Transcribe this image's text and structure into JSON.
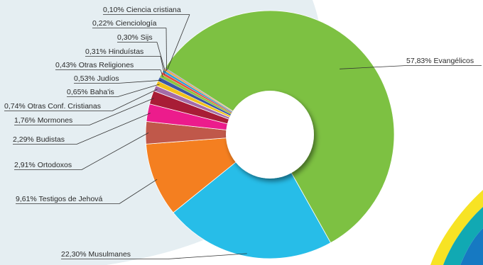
{
  "chart_data": {
    "type": "pie",
    "variant": "donut",
    "labels": [
      "57,83%  Evangélicos",
      "22,30%  Musulmanes",
      "9,61%  Testigos de Jehová",
      "2,91%  Ortodoxos",
      "2,29%  Budistas",
      "1,76%  Mormones",
      "0,74%  Otras Conf. Cristianas",
      "0,65%  Baha'is",
      "0,53%  Judíos",
      "0,43%  Otras Religiones",
      "0,31%  Hinduístas",
      "0,30%  Sijs",
      "0,22%  Cienciología",
      "0,10%  Ciencia cristiana"
    ],
    "series": [
      {
        "name": "Evangélicos",
        "value": 57.83,
        "color": "#7dc142"
      },
      {
        "name": "Musulmanes",
        "value": 22.3,
        "color": "#27bde8"
      },
      {
        "name": "Testigos de Jehová",
        "value": 9.61,
        "color": "#f47f20"
      },
      {
        "name": "Ortodoxos",
        "value": 2.91,
        "color": "#c0584a"
      },
      {
        "name": "Budistas",
        "value": 2.29,
        "color": "#ec1c8c"
      },
      {
        "name": "Mormones",
        "value": 1.76,
        "color": "#a81d36"
      },
      {
        "name": "Otras Conf. Cristianas",
        "value": 0.74,
        "color": "#a46ba8"
      },
      {
        "name": "Baha'is",
        "value": 0.65,
        "color": "#f2c21b"
      },
      {
        "name": "Judíos",
        "value": 0.53,
        "color": "#3b57a6"
      },
      {
        "name": "Otras Religiones",
        "value": 0.43,
        "color": "#8fc43e"
      },
      {
        "name": "Hinduístas",
        "value": 0.31,
        "color": "#e74c3c"
      },
      {
        "name": "Sijs",
        "value": 0.3,
        "color": "#2f9fd7"
      },
      {
        "name": "Cienciología",
        "value": 0.22,
        "color": "#f7a93b"
      },
      {
        "name": "Ciencia cristiana",
        "value": 0.1,
        "color": "#7c5ea8"
      }
    ],
    "legend": "none"
  },
  "colors": {
    "background_blob": "#e5eef2",
    "accent_yellow": "#f7e324",
    "accent_teal": "#11a9b3",
    "accent_blue": "#1679c2",
    "leader_line": "#333333"
  }
}
